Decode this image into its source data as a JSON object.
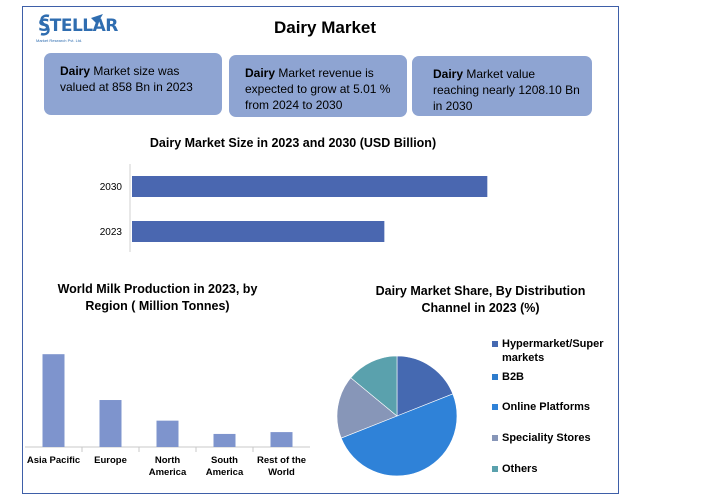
{
  "logo": {
    "name": "STELLAR",
    "tagline": "Market Research Pvt. Ltd."
  },
  "title": "Dairy Market",
  "info_boxes": [
    {
      "bold": "Dairy",
      "text": " Market size was valued at 858 Bn in 2023"
    },
    {
      "bold": "Dairy",
      "text": " Market revenue is expected to grow at 5.01 % from 2024 to 2030"
    },
    {
      "bold": "Dairy",
      "text": " Market value reaching nearly 1208.10 Bn in 2030"
    }
  ],
  "colors": {
    "bar_main": "#4a67b0",
    "bar_region": "#7e94cd",
    "box": "#8ea4d2"
  },
  "chart_data": [
    {
      "type": "bar",
      "orientation": "horizontal",
      "title": "Dairy Market Size in 2023 and 2030 (USD Billion)",
      "categories": [
        "2030",
        "2023"
      ],
      "values": [
        1208.1,
        858
      ],
      "xlim": [
        0,
        1700
      ]
    },
    {
      "type": "bar",
      "title": "World Milk Production in 2023, by Region ( Million Tonnes)",
      "categories": [
        "Asia Pacific",
        "Europe",
        "North America",
        "South America",
        "Rest of the World"
      ],
      "values": [
        405,
        205,
        115,
        57,
        65
      ],
      "ylim": [
        0,
        480
      ]
    },
    {
      "type": "pie",
      "title": "Dairy Market Share, By Distribution Channel in 2023 (%)",
      "categories": [
        "Hypermarket/Super markets",
        "B2B",
        "Online Platforms",
        "Speciality Stores",
        "Others"
      ],
      "values": [
        19,
        0,
        50,
        17,
        14
      ],
      "colors": [
        "#4569b1",
        "#2d7ccd",
        "#2f82d8",
        "#8796b8",
        "#5aa1ad"
      ]
    }
  ]
}
